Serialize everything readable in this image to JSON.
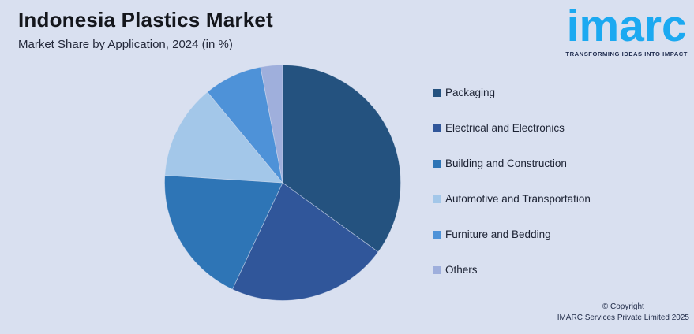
{
  "header": {
    "title": "Indonesia Plastics Market",
    "subtitle": "Market Share by Application, 2024 (in %)"
  },
  "chart_data": {
    "type": "pie",
    "title": "Indonesia Plastics Market",
    "subtitle": "Market Share by Application, 2024 (in %)",
    "unit": "percent",
    "start_angle_deg": 0,
    "direction": "clockwise",
    "legend_position": "right",
    "labels": [
      "Packaging",
      "Electrical and Electronics",
      "Building and Construction",
      "Automotive and Transportation",
      "Furniture and Bedding",
      "Others"
    ],
    "values": [
      35,
      22,
      19,
      13,
      8,
      3
    ],
    "colors": [
      "#24527F",
      "#30569A",
      "#2E75B6",
      "#A3C7E9",
      "#4E92D8",
      "#9FAFDC"
    ]
  },
  "branding": {
    "logo_text": "imarc",
    "tagline": "TRANSFORMING IDEAS INTO IMPACT",
    "logo_color": "#1BA9F1"
  },
  "footer": {
    "copyright_line1": "© Copyright",
    "copyright_line2": "IMARC Services Private Limited 2025"
  },
  "colors": {
    "background": "#D9E0F0",
    "slice_separator": "#D9E0F0"
  }
}
